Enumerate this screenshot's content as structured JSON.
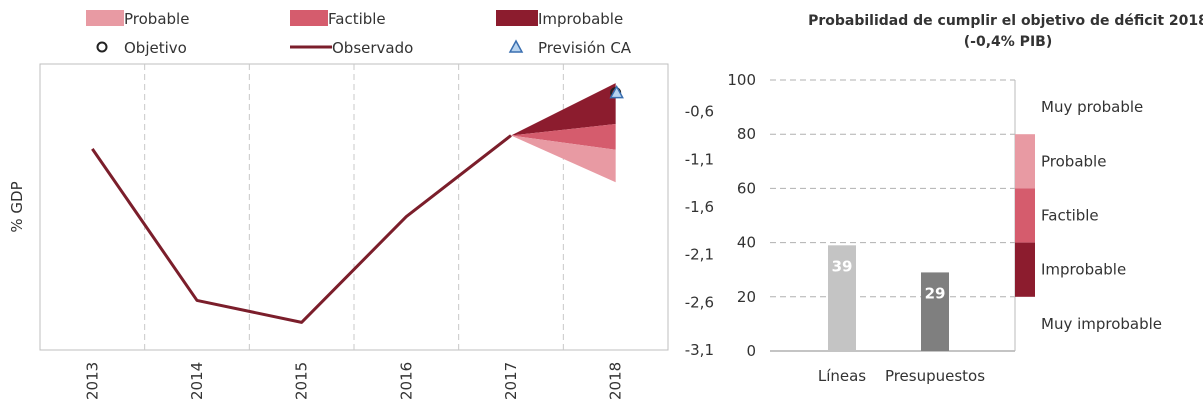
{
  "chart_data": [
    {
      "type": "line",
      "ylabel": "% GDP",
      "x": [
        "2013",
        "2014",
        "2015",
        "2016",
        "2017",
        "2018"
      ],
      "yticks": [
        "-0,6",
        "-1,1",
        "-1,6",
        "-2,1",
        "-2,6",
        "-3,1"
      ],
      "ylim": [
        -3.1,
        -0.1
      ],
      "grid": "vertical dashed",
      "legend": {
        "placement": "top",
        "entries": [
          {
            "label": "Probable",
            "kind": "fill",
            "color": "#e89aa3"
          },
          {
            "label": "Factible",
            "kind": "fill",
            "color": "#d55c6d"
          },
          {
            "label": "Improbable",
            "kind": "fill",
            "color": "#8c1c2e"
          },
          {
            "label": "Objetivo",
            "kind": "circle",
            "color": "#222222"
          },
          {
            "label": "Observado",
            "kind": "line",
            "color": "#7b1e2b"
          },
          {
            "label": "Previsión CA",
            "kind": "triangle",
            "color": "#3a6fb0"
          }
        ]
      },
      "series": [
        {
          "name": "Observado",
          "x": [
            "2013",
            "2014",
            "2015",
            "2016",
            "2017"
          ],
          "values": [
            -0.99,
            -2.58,
            -2.81,
            -1.7,
            -0.85
          ],
          "color": "#7b1e2b"
        }
      ],
      "bands": [
        {
          "name": "Probable",
          "from_x": "2017",
          "from_y": -0.85,
          "to_x": "2018",
          "upper": -1.0,
          "lower": -1.34,
          "color": "#e89aa3"
        },
        {
          "name": "Factible",
          "from_x": "2017",
          "from_y": -0.85,
          "to_x": "2018",
          "upper": -0.73,
          "lower": -1.0,
          "color": "#d55c6d"
        },
        {
          "name": "Improbable",
          "from_x": "2017",
          "from_y": -0.85,
          "to_x": "2018",
          "upper": -0.3,
          "lower": -0.73,
          "color": "#8c1c2e"
        }
      ],
      "points": [
        {
          "name": "Objetivo",
          "x": "2018",
          "y": -0.4
        },
        {
          "name": "Previsión CA",
          "x": "2018",
          "y": -0.4
        }
      ]
    },
    {
      "type": "bar",
      "title": "Probabilidad de cumplir el objetivo de déficit 2018",
      "subtitle": "(-0,4% PIB)",
      "categories": [
        "Líneas",
        "Presupuestos"
      ],
      "values": [
        39,
        29
      ],
      "colors": [
        "#c4c4c4",
        "#7f7f7f"
      ],
      "ylim": [
        0,
        100
      ],
      "yticks": [
        "100",
        "80",
        "60",
        "40",
        "20",
        "0"
      ],
      "grid": "horizontal dashed",
      "scale": [
        {
          "label": "Muy probable",
          "from": 80,
          "to": 100,
          "color": ""
        },
        {
          "label": "Probable",
          "from": 60,
          "to": 80,
          "color": "#e89aa3"
        },
        {
          "label": "Factible",
          "from": 40,
          "to": 60,
          "color": "#d55c6d"
        },
        {
          "label": "Improbable",
          "from": 20,
          "to": 40,
          "color": "#8c1c2e"
        },
        {
          "label": "Muy improbable",
          "from": 0,
          "to": 20,
          "color": ""
        }
      ]
    }
  ]
}
